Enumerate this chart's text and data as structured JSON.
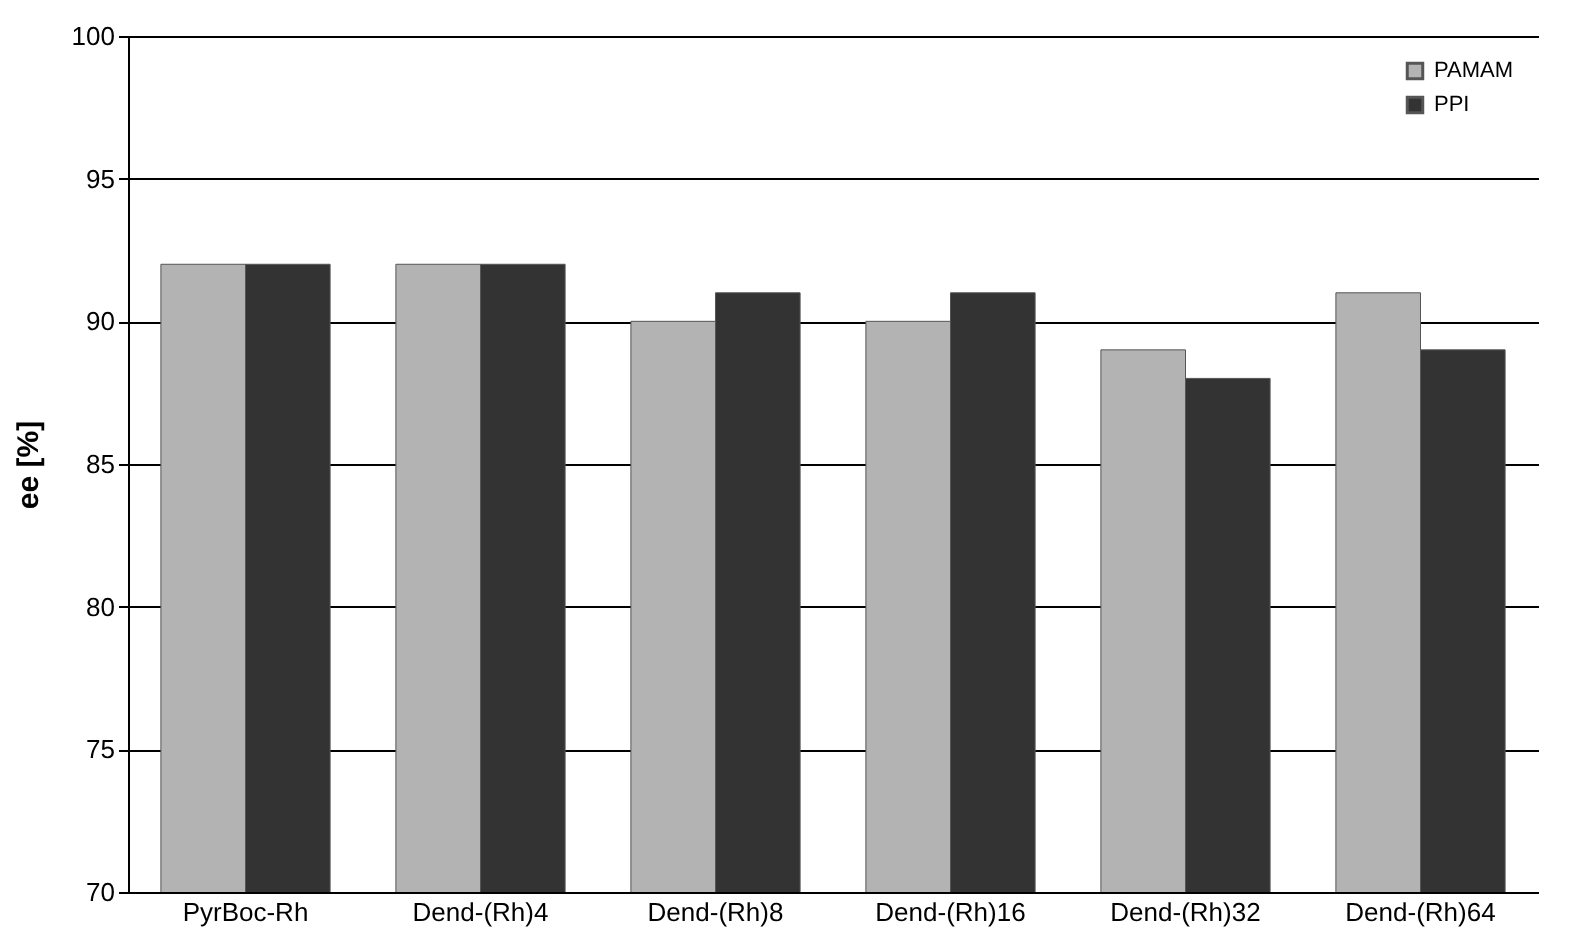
{
  "chart_data": {
    "type": "bar",
    "ylabel": "ee [%]",
    "categories": [
      "PyrBoc-Rh",
      "Dend-(Rh)4",
      "Dend-(Rh)8",
      "Dend-(Rh)16",
      "Dend-(Rh)32",
      "Dend-(Rh)64"
    ],
    "series": [
      {
        "name": "PAMAM",
        "color": "#b3b3b3",
        "values": [
          92,
          92,
          90,
          90,
          89,
          91
        ]
      },
      {
        "name": "PPI",
        "color": "#333333",
        "values": [
          92,
          92,
          91,
          91,
          88,
          89
        ]
      }
    ],
    "ylim": [
      70,
      100
    ],
    "yticks": [
      70,
      75,
      80,
      85,
      90,
      95,
      100
    ],
    "grid": "y",
    "legend": "top right"
  }
}
